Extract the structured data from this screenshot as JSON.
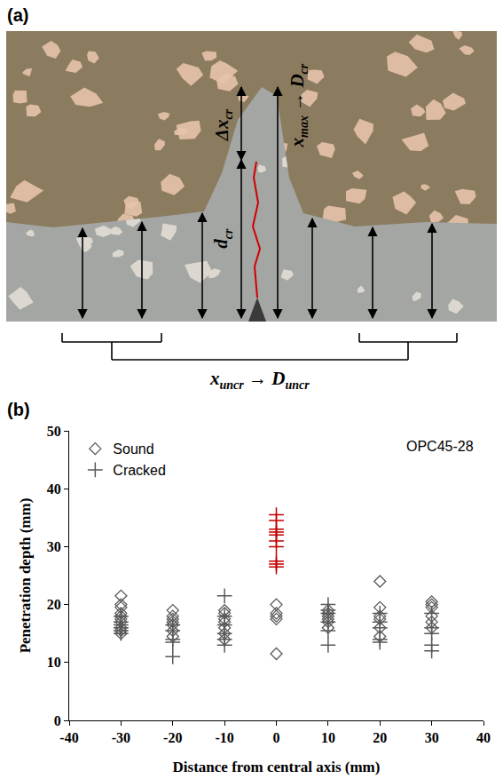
{
  "diagram": {
    "letter": "(a)",
    "labels": [
      [
        {
          "text": "Δx",
          "sub": "cr"
        }
      ],
      [
        {
          "text": "d",
          "sub": "cr"
        }
      ],
      [
        {
          "text": "x",
          "sub": "max"
        },
        {
          "text": " → "
        },
        {
          "text": "D",
          "sub": "cr"
        }
      ],
      [
        {
          "text": "x",
          "sub": "uncr"
        },
        {
          "text": " → "
        },
        {
          "text": "D",
          "sub": "uncr"
        }
      ]
    ]
  },
  "chart_data": {
    "letter": "(b)",
    "type": "scatter",
    "x_label": "Distance from central axis (mm)",
    "y_label": "Penetration depth (mm)",
    "annotations": [
      "OPC45-28"
    ],
    "xlim": [
      -40,
      40
    ],
    "xticks": [
      -40,
      -30,
      -20,
      -10,
      0,
      10,
      20,
      30,
      40
    ],
    "ylim": [
      0,
      50
    ],
    "yticks": [
      0,
      10,
      20,
      30,
      40,
      50
    ],
    "grid": false,
    "legend": "upper left",
    "series": [
      {
        "name": "Sound",
        "marker": "diamond",
        "color": "#595959",
        "x": [
          -30,
          -30,
          -30,
          -30,
          -30,
          -30,
          -30,
          -30,
          -30,
          -30,
          -20,
          -20,
          -20,
          -20,
          -20,
          -20,
          -20,
          -10,
          -10,
          -10,
          -10,
          -10,
          -10,
          -10,
          0,
          0,
          0,
          0,
          0,
          10,
          10,
          10,
          10,
          10,
          10,
          20,
          20,
          20,
          20,
          20,
          20,
          30,
          30,
          30,
          30,
          30,
          30
        ],
        "values": [
          21.5,
          20,
          19.5,
          18.5,
          18,
          17.5,
          17,
          16,
          15.5,
          15,
          19,
          18,
          17.5,
          17,
          16.5,
          15.5,
          14.5,
          19,
          18.5,
          17.5,
          17,
          16,
          15,
          14,
          20,
          18.5,
          18,
          17.5,
          11.5,
          19,
          18.5,
          18,
          17.5,
          17,
          16,
          24,
          19.5,
          18,
          17.5,
          16,
          14.5,
          20.5,
          20,
          19.5,
          18,
          17,
          16
        ]
      },
      {
        "name": "Cracked",
        "marker": "cross",
        "x": [
          -30,
          -30,
          -30,
          -30,
          -30,
          -30,
          -20,
          -20,
          -20,
          -20,
          -20,
          -10,
          -10,
          -10,
          -10,
          -10,
          -10,
          10,
          10,
          10,
          10,
          10,
          10,
          20,
          20,
          20,
          20,
          20,
          30,
          30,
          30,
          30,
          30,
          0,
          0,
          0,
          0,
          0,
          0,
          0,
          0,
          0,
          0
        ],
        "values": [
          18,
          17,
          16.5,
          16,
          15.5,
          15,
          16.5,
          15.5,
          14,
          13.5,
          11,
          21.5,
          18,
          16.5,
          15,
          14,
          13,
          20,
          19,
          18.5,
          17,
          15.5,
          13,
          18.5,
          17,
          16,
          14,
          13.5,
          18.5,
          16,
          15,
          13,
          12,
          35.5,
          34.5,
          33,
          32.5,
          32,
          31,
          30,
          27.5,
          27,
          26.5
        ],
        "colors": [
          "#595959",
          "#595959",
          "#595959",
          "#595959",
          "#595959",
          "#595959",
          "#595959",
          "#595959",
          "#595959",
          "#595959",
          "#595959",
          "#595959",
          "#595959",
          "#595959",
          "#595959",
          "#595959",
          "#595959",
          "#595959",
          "#595959",
          "#595959",
          "#595959",
          "#595959",
          "#595959",
          "#595959",
          "#595959",
          "#595959",
          "#595959",
          "#595959",
          "#595959",
          "#595959",
          "#595959",
          "#595959",
          "#595959",
          "#c00000",
          "#c00000",
          "#c00000",
          "#c00000",
          "#c00000",
          "#c00000",
          "#c00000",
          "#c00000",
          "#c00000",
          "#c00000"
        ]
      }
    ]
  }
}
